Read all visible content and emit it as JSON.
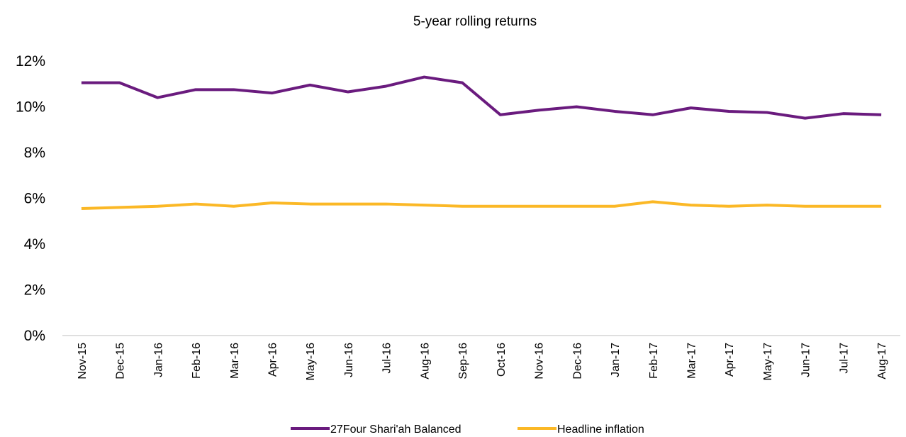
{
  "chart_data": {
    "type": "line",
    "title": "5-year rolling returns",
    "categories": [
      "Nov-15",
      "Dec-15",
      "Jan-16",
      "Feb-16",
      "Mar-16",
      "Apr-16",
      "May-16",
      "Jun-16",
      "Jul-16",
      "Aug-16",
      "Sep-16",
      "Oct-16",
      "Nov-16",
      "Dec-16",
      "Jan-17",
      "Feb-17",
      "Mar-17",
      "Apr-17",
      "May-17",
      "Jun-17",
      "Jul-17",
      "Aug-17"
    ],
    "series": [
      {
        "name": "27Four Shari'ah Balanced",
        "color": "#6a1b7e",
        "values": [
          11.05,
          11.05,
          10.4,
          10.75,
          10.75,
          10.6,
          10.95,
          10.65,
          10.9,
          11.3,
          11.05,
          9.65,
          9.85,
          10.0,
          9.8,
          9.65,
          9.95,
          9.8,
          9.75,
          9.5,
          9.7,
          9.65
        ]
      },
      {
        "name": "Headline inflation",
        "color": "#fbb826",
        "values": [
          5.55,
          5.6,
          5.65,
          5.75,
          5.65,
          5.8,
          5.75,
          5.75,
          5.75,
          5.7,
          5.65,
          5.65,
          5.65,
          5.65,
          5.65,
          5.85,
          5.7,
          5.65,
          5.7,
          5.65,
          5.65,
          5.65
        ]
      }
    ],
    "ylim": [
      0,
      12
    ],
    "yticks": [
      {
        "value": 0,
        "label": "0%"
      },
      {
        "value": 2,
        "label": "2%"
      },
      {
        "value": 4,
        "label": "4%"
      },
      {
        "value": 6,
        "label": "6%"
      },
      {
        "value": 8,
        "label": "8%"
      },
      {
        "value": 10,
        "label": "10%"
      },
      {
        "value": 12,
        "label": "12%"
      }
    ],
    "legend": "bottom"
  }
}
